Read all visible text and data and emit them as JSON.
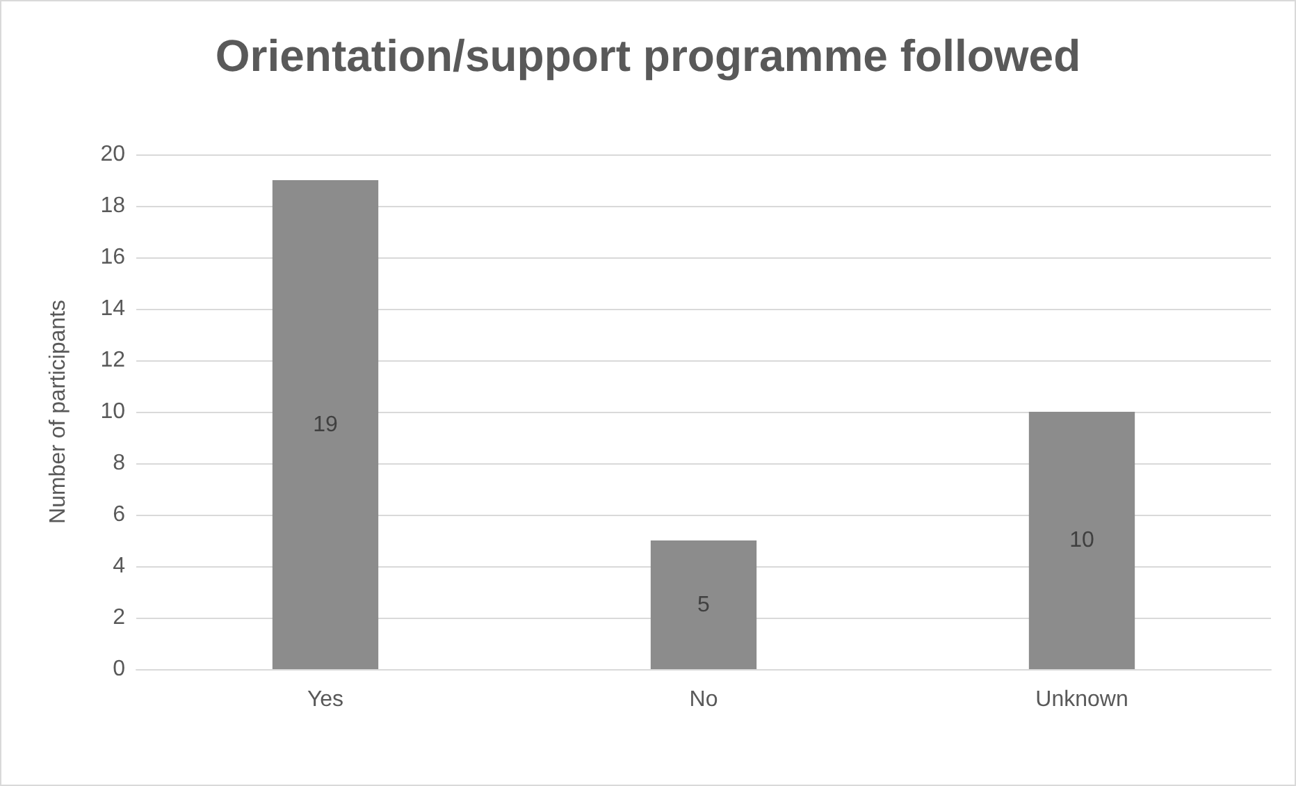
{
  "chart_data": {
    "type": "bar",
    "title": "Orientation/support programme followed",
    "ylabel": "Number of participants",
    "categories": [
      "Yes",
      "No",
      "Unknown"
    ],
    "values": [
      19,
      5,
      10
    ],
    "color": "#8c8c8c",
    "ylim": [
      0,
      20
    ],
    "yticks": [
      0,
      2,
      4,
      6,
      8,
      10,
      12,
      14,
      16,
      18,
      20
    ],
    "grid": "y",
    "data_labels": true
  }
}
